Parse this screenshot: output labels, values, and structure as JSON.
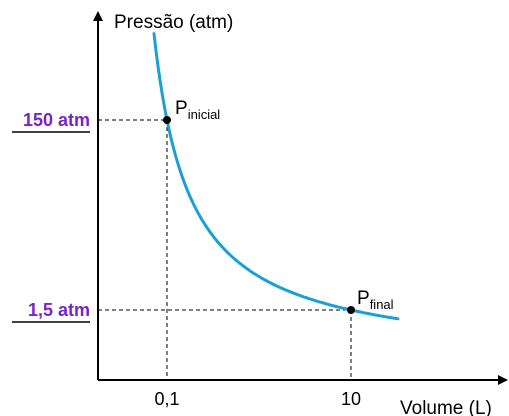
{
  "chart_data": {
    "type": "line",
    "title": "",
    "ylabel": "Pressão (atm)",
    "xlabel": "Volume (L)",
    "x_ticks": [
      "0,1",
      "10"
    ],
    "y_ticks": [
      "150 atm",
      "1,5 atm"
    ],
    "grid": false,
    "legend": "none",
    "series": [
      {
        "curve": "isotherm",
        "x": [
          0.1,
          10
        ],
        "y": [
          150,
          1.5
        ]
      }
    ],
    "points": [
      {
        "label": "P",
        "subscript": "inicial",
        "x": 0.1,
        "y": 150
      },
      {
        "label": "P",
        "subscript": "final",
        "x": 10,
        "y": 1.5
      }
    ],
    "colors": {
      "curve": "#1a9fd6",
      "y_tick_labels": "#7a22c9",
      "axes": "#000000",
      "guides": "#000000"
    }
  }
}
